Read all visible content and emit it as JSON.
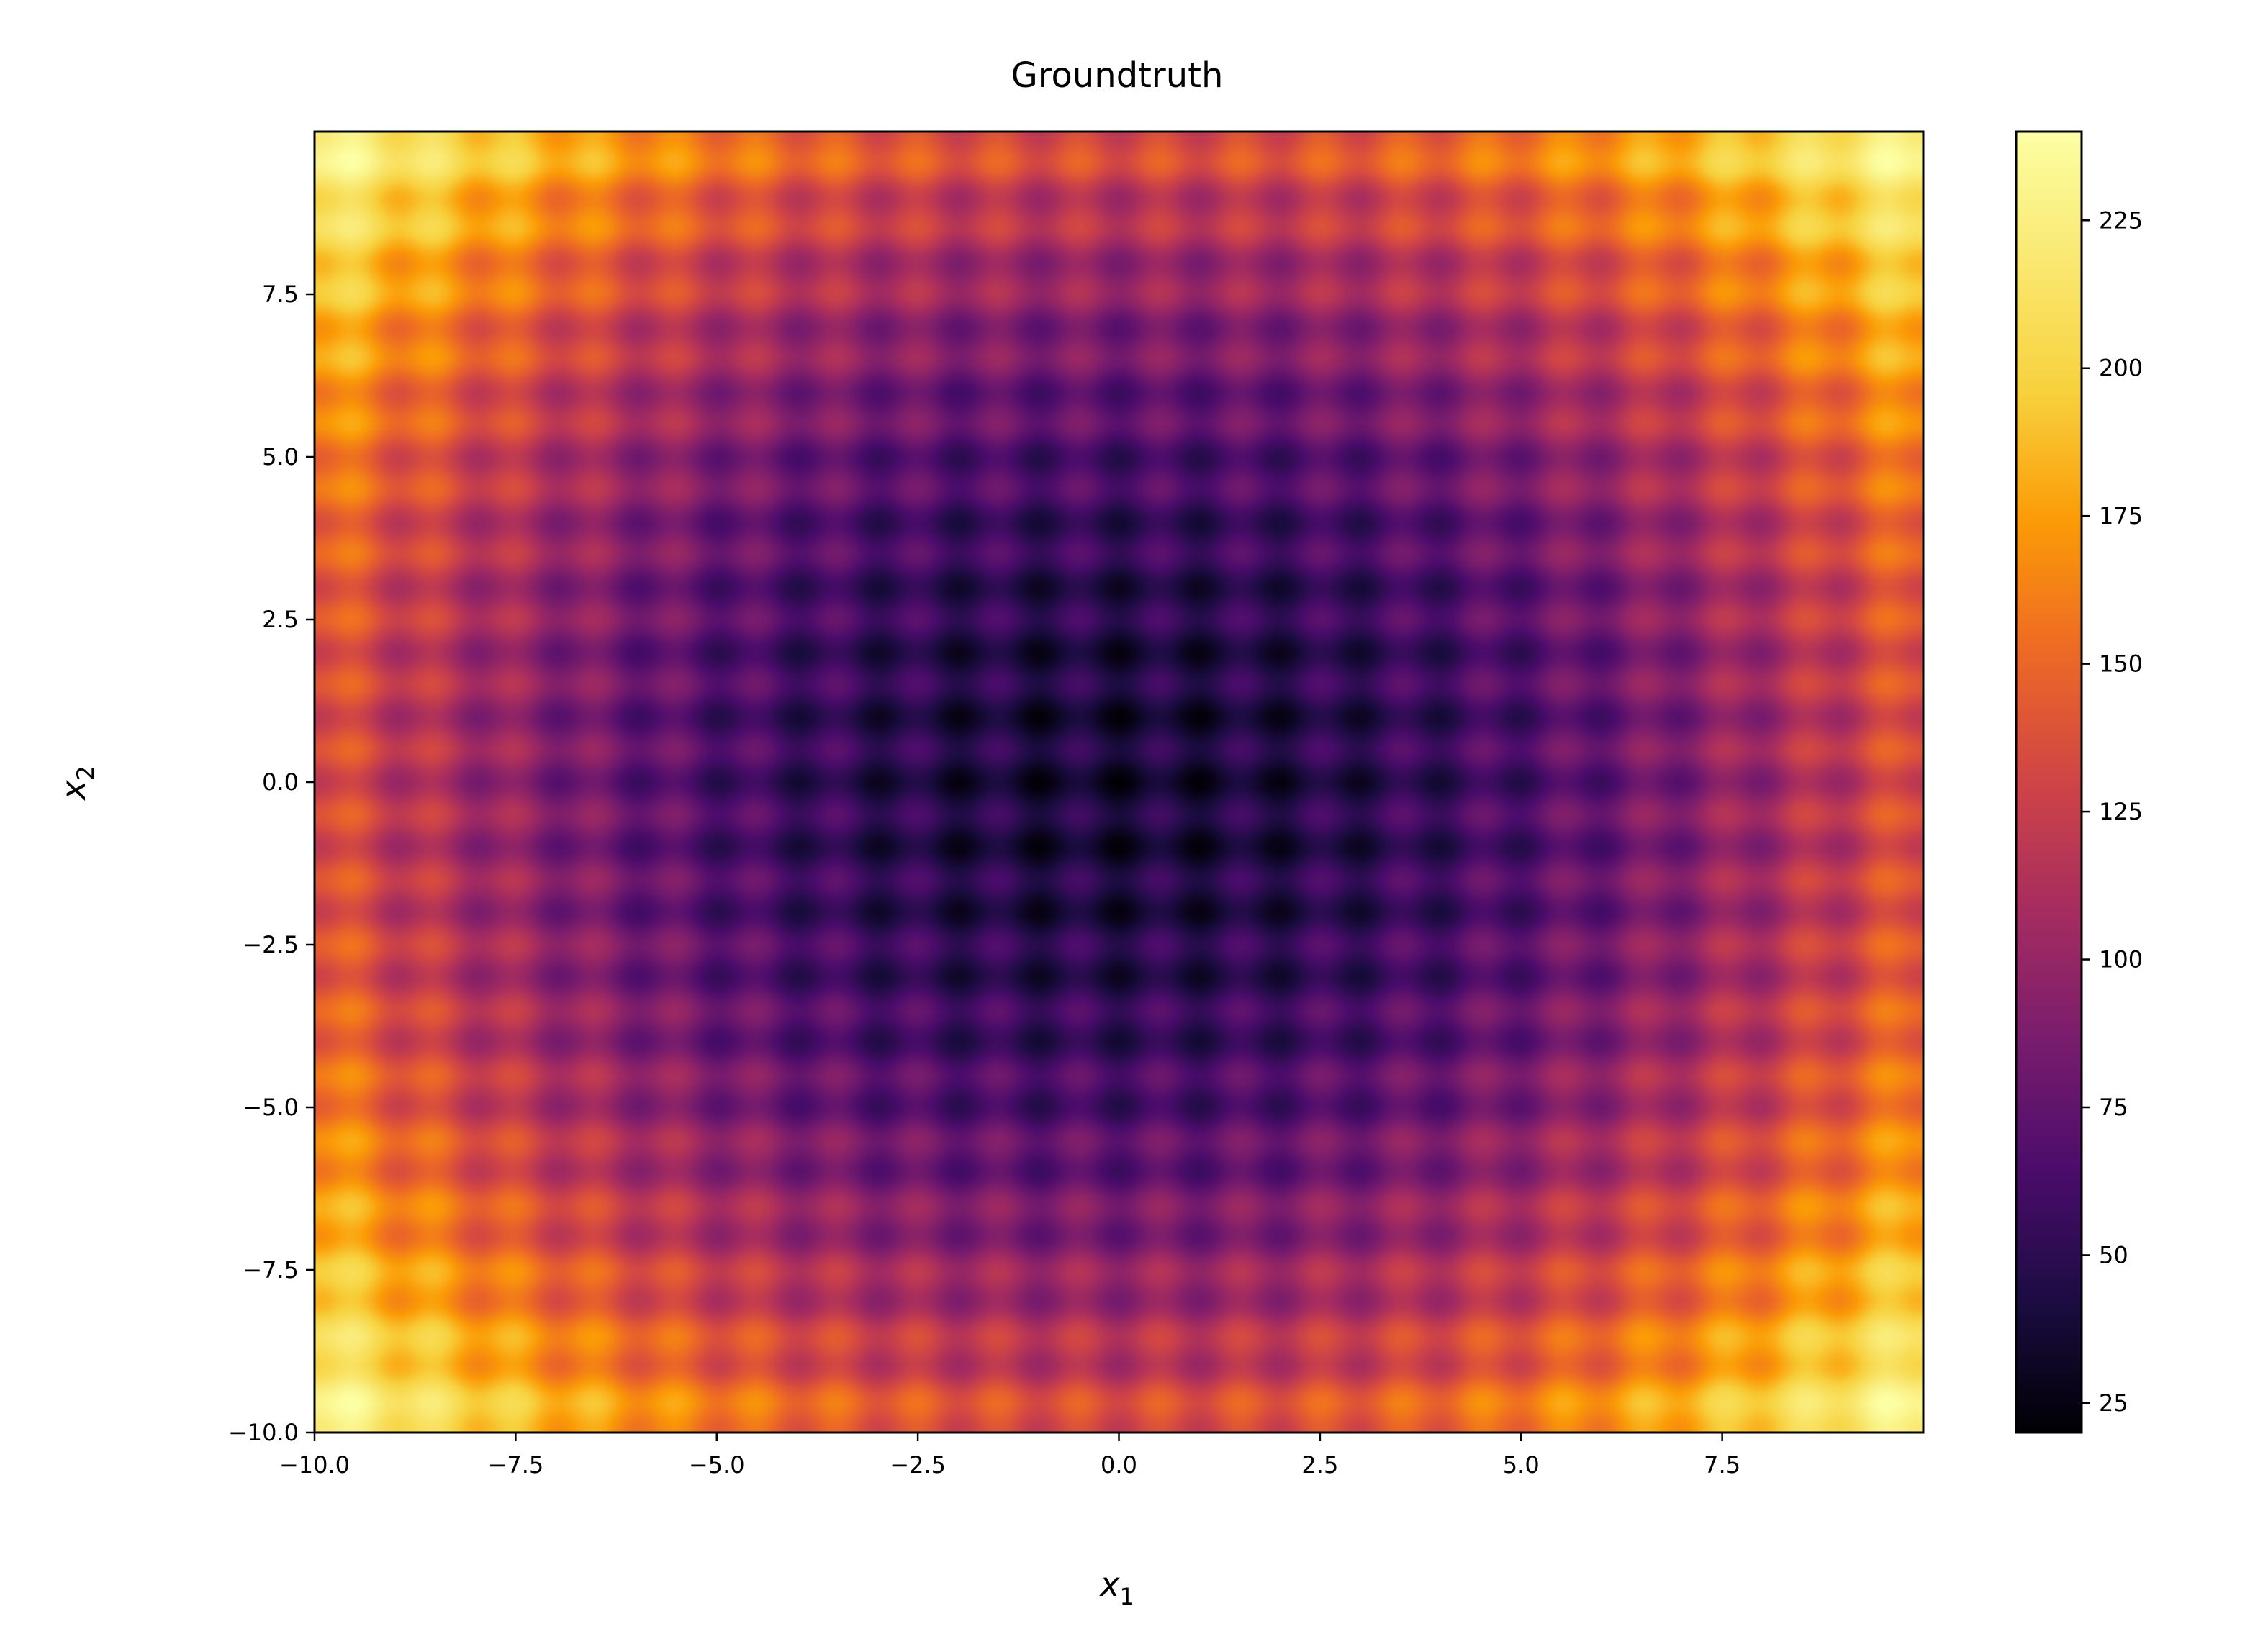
{
  "chart_data": {
    "type": "heatmap",
    "title": "Groundtruth",
    "xlabel": "x",
    "xlabel_sub": "1",
    "ylabel": "x",
    "ylabel_sub": "2",
    "xlim": [
      -10,
      10
    ],
    "ylim": [
      -10,
      10
    ],
    "xticks": [
      -10.0,
      -7.5,
      -5.0,
      -2.5,
      0.0,
      2.5,
      5.0,
      7.5
    ],
    "xtick_labels": [
      "−10.0",
      "−7.5",
      "−5.0",
      "−2.5",
      "0.0",
      "2.5",
      "5.0",
      "7.5"
    ],
    "yticks": [
      -10.0,
      -7.5,
      -5.0,
      -2.5,
      0.0,
      2.5,
      5.0,
      7.5
    ],
    "ytick_labels": [
      "−10.0",
      "−7.5",
      "−5.0",
      "−2.5",
      "0.0",
      "2.5",
      "5.0",
      "7.5"
    ],
    "colormap": "inferno",
    "colorbar": {
      "vmin": 20,
      "vmax": 240,
      "ticks": [
        25,
        50,
        75,
        100,
        125,
        150,
        175,
        200,
        225
      ],
      "tick_labels": [
        "25",
        "50",
        "75",
        "100",
        "125",
        "150",
        "175",
        "200",
        "225"
      ]
    },
    "grid": false,
    "surface": "Rastrigin-like bowl: value rises from about 20 at the center to about 240 at the corners, with a periodic ripple of period 1 along both x1 and x2"
  }
}
